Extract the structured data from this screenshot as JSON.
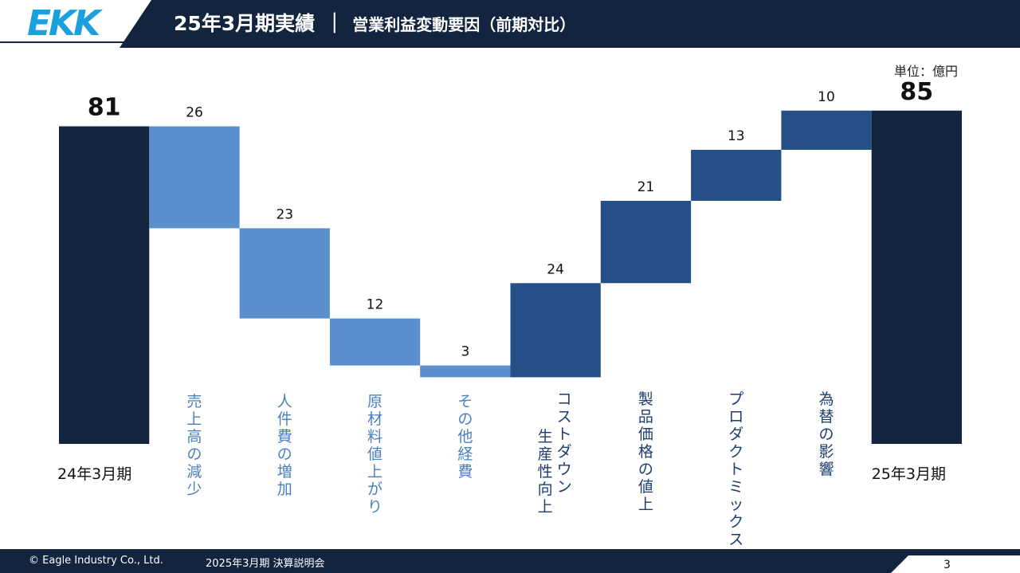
{
  "header": {
    "logo_text": "EKK",
    "title_main": "25年3月期実績",
    "title_separator": "｜",
    "title_sub": "営業利益変動要因（前期対比）"
  },
  "unit_label": "単位：億円",
  "colors": {
    "navy": "#13243f",
    "decrease": "#5b8fcd",
    "increase": "#254f86",
    "logo": "#1aa0dc"
  },
  "chart_data": {
    "type": "bar",
    "subtype": "waterfall",
    "unit": "億円",
    "categories": [
      "24年3月期",
      "売上高の減少",
      "人件費の増加",
      "原材料値上がり",
      "その他経費",
      "コストダウン 生産性向上",
      "製品価格の値上",
      "プロダクトミックス",
      "為替の影響",
      "25年3月期"
    ],
    "values": [
      81,
      -26,
      -23,
      -12,
      -3,
      24,
      21,
      13,
      10,
      85
    ],
    "data_labels": [
      "81",
      "26",
      "23",
      "12",
      "3",
      "24",
      "21",
      "13",
      "10",
      "85"
    ],
    "kinds": [
      "total",
      "decrease",
      "decrease",
      "decrease",
      "decrease",
      "increase",
      "increase",
      "increase",
      "increase",
      "total"
    ],
    "vertical_labels": [
      {
        "lines": [
          "売上高の減少"
        ],
        "style": "light"
      },
      {
        "lines": [
          "人件費の増加"
        ],
        "style": "light"
      },
      {
        "lines": [
          "原材料値上がり"
        ],
        "style": "light"
      },
      {
        "lines": [
          "その他経費"
        ],
        "style": "light"
      },
      {
        "lines": [
          "コストダウン",
          "生産性向上"
        ],
        "style": "dark"
      },
      {
        "lines": [
          "製品価格の値上"
        ],
        "style": "dark"
      },
      {
        "lines": [
          "プロダクトミックス"
        ],
        "style": "dark"
      },
      {
        "lines": [
          "為替の影響"
        ],
        "style": "dark"
      }
    ],
    "end_labels": [
      "24年3月期",
      "25年3月期"
    ]
  },
  "footer": {
    "copyright": "© Eagle Industry Co., Ltd.",
    "event": "2025年3月期 決算説明会",
    "page_number": "3"
  }
}
